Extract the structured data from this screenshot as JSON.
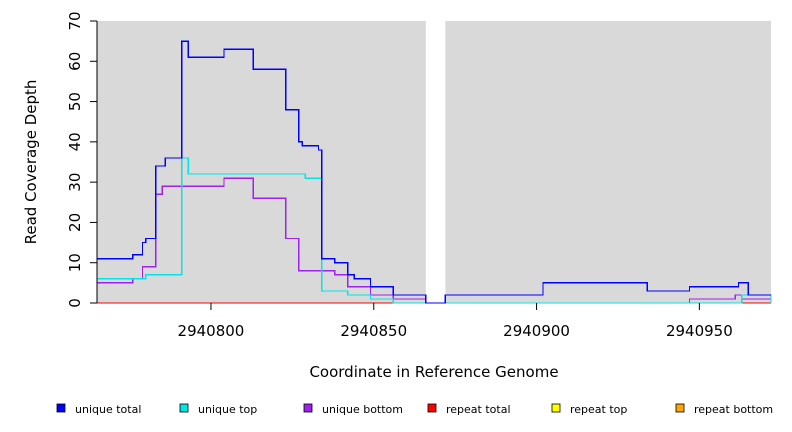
{
  "chart_data": {
    "type": "line",
    "xlabel": "Coordinate in Reference Genome",
    "ylabel": "Read Coverage Depth",
    "xlim": [
      2940765,
      2940972
    ],
    "ylim": [
      0,
      70
    ],
    "x_ticks": [
      2940800,
      2940850,
      2940900,
      2940950
    ],
    "y_ticks": [
      0,
      10,
      20,
      30,
      40,
      50,
      60,
      70
    ],
    "x_tick_labels": [
      "2940800",
      "2940850",
      "2940900",
      "2940950"
    ],
    "y_tick_labels": [
      "0",
      "10",
      "20",
      "30",
      "40",
      "50",
      "60",
      "70"
    ],
    "background": "#d9d9d9",
    "gap": [
      2940866,
      2940872
    ],
    "legend_position": "bottom",
    "series": [
      {
        "name": "unique total",
        "color": "#0000ff",
        "x": [
          2940765,
          2940776,
          2940777,
          2940779,
          2940780,
          2940783,
          2940784,
          2940786,
          2940791,
          2940793,
          2940804,
          2940813,
          2940823,
          2940827,
          2940828,
          2940833,
          2940834,
          2940838,
          2940842,
          2940844,
          2940849,
          2940856,
          2940866,
          2940872,
          2940902,
          2940934,
          2940947,
          2940962,
          2940965,
          2940972
        ],
        "y": [
          11,
          12,
          12,
          15,
          16,
          34,
          34,
          36,
          65,
          61,
          63,
          58,
          48,
          40,
          39,
          38,
          11,
          10,
          7,
          6,
          4,
          2,
          0,
          2,
          5,
          3,
          4,
          5,
          2,
          2
        ]
      },
      {
        "name": "unique top",
        "color": "#00e5e5",
        "x": [
          2940765,
          2940776,
          2940780,
          2940791,
          2940793,
          2940823,
          2940829,
          2940834,
          2940842,
          2940849,
          2940856,
          2940866,
          2940872,
          2940963,
          2940972
        ],
        "y": [
          6,
          6,
          7,
          36,
          32,
          32,
          31,
          3,
          2,
          1,
          0,
          0,
          0,
          2,
          0
        ]
      },
      {
        "name": "unique bottom",
        "color": "#a020f0",
        "x": [
          2940765,
          2940776,
          2940779,
          2940783,
          2940785,
          2940804,
          2940813,
          2940823,
          2940827,
          2940838,
          2940842,
          2940849,
          2940856,
          2940866,
          2940872,
          2940947,
          2940961,
          2940963,
          2940972
        ],
        "y": [
          5,
          6,
          9,
          27,
          29,
          31,
          26,
          16,
          8,
          7,
          4,
          2,
          1,
          0,
          0,
          1,
          2,
          1,
          0
        ]
      },
      {
        "name": "repeat total",
        "color": "#ff0000",
        "x": [
          2940765,
          2940972
        ],
        "y": [
          0,
          0
        ]
      },
      {
        "name": "repeat top",
        "color": "#ffff00",
        "x": [
          2940765,
          2940972
        ],
        "y": [
          0,
          0
        ]
      },
      {
        "name": "repeat bottom",
        "color": "#ffa500",
        "x": [
          2940765,
          2940972
        ],
        "y": [
          0,
          0
        ]
      }
    ]
  }
}
